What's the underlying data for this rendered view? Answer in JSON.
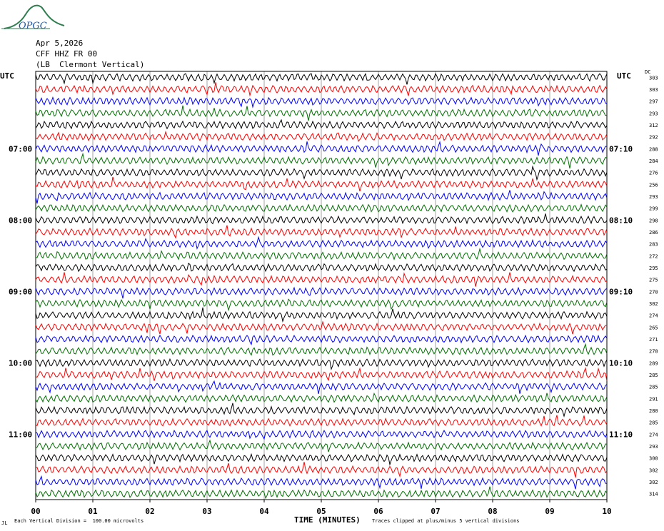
{
  "header": {
    "logo_text": "OPGC",
    "date": "Apr 5,2026",
    "station": "CFF HHZ FR 00",
    "location": "(LB  Clermont Vertical)"
  },
  "labels": {
    "utc_left": "UTC",
    "utc_right": "UTC",
    "dc_header": "DC",
    "x_title": "TIME (MINUTES)",
    "scale_note": "Each Vertical Division =  100.00 microvolts",
    "clip_note": "Traces clipped at plus/minus 5 vertical divisions",
    "corner_mark": "JL"
  },
  "colors": {
    "trace_cycle": [
      "#000000",
      "#ff0000",
      "#0000ff",
      "#007000"
    ],
    "grid": "#000000",
    "logo": "#2e7d4f"
  },
  "chart_data": {
    "type": "line",
    "title": "",
    "xlabel": "TIME (MINUTES)",
    "xlim": [
      0,
      10
    ],
    "x_ticks": [
      "00",
      "01",
      "02",
      "03",
      "04",
      "05",
      "06",
      "07",
      "08",
      "09",
      "10"
    ],
    "left_time_labels": [
      "07:00",
      "08:00",
      "09:00",
      "10:00",
      "11:00"
    ],
    "right_time_labels": [
      "07:10",
      "08:10",
      "09:10",
      "10:10",
      "11:10"
    ],
    "hour_label_row_index": [
      6,
      12,
      18,
      24,
      30
    ],
    "trace_count": 36,
    "dc_offsets": [
      303,
      303,
      297,
      293,
      312,
      292,
      288,
      284,
      276,
      256,
      293,
      299,
      298,
      286,
      283,
      272,
      295,
      275,
      270,
      302,
      274,
      265,
      271,
      270,
      289,
      285,
      285,
      291,
      280,
      285,
      274,
      293,
      300,
      302,
      302,
      314
    ],
    "units": "microvolts",
    "vertical_division": 100.0,
    "clip_divisions": 5
  }
}
